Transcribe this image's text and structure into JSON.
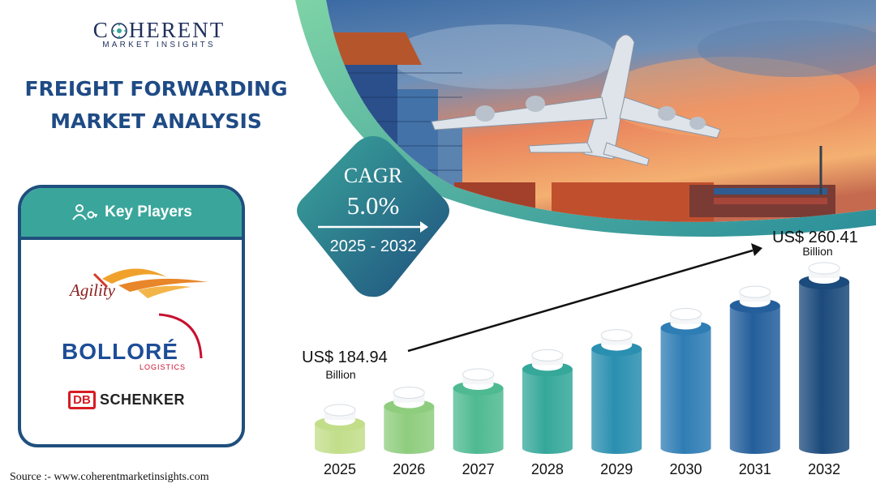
{
  "brand": {
    "logo_word": "COHERENT",
    "logo_sub": "MARKET INSIGHTS"
  },
  "title": {
    "line1": "FREIGHT FORWARDING",
    "line2": "MARKET ANALYSIS"
  },
  "key_players": {
    "heading": "Key Players",
    "companies": [
      "Agility",
      "BOLLORÉ",
      "LOGISTICS",
      "DB",
      "SCHENKER"
    ]
  },
  "cagr": {
    "label": "CAGR",
    "value": "5.0%",
    "period": "2025 - 2032"
  },
  "source": "Source :-  www.coherentmarketinsights.com",
  "colors": {
    "title": "#1f4b85",
    "teal": "#3aa69b",
    "navy": "#1f4f7e"
  },
  "chart_data": {
    "type": "bar",
    "categories": [
      "2025",
      "2026",
      "2027",
      "2028",
      "2029",
      "2030",
      "2031",
      "2032"
    ],
    "values": [
      184.94,
      194.19,
      203.9,
      214.09,
      224.8,
      236.04,
      247.84,
      260.41
    ],
    "annotations": [
      {
        "category": "2025",
        "value_label": "US$ 184.94",
        "unit_label": "Billion"
      },
      {
        "category": "2032",
        "value_label": "US$ 260.41",
        "unit_label": "Billion"
      }
    ],
    "bar_colors": [
      "#c2de8a",
      "#8fcd7e",
      "#4fba92",
      "#35a89a",
      "#2a8fb0",
      "#2f7db5",
      "#245f9c",
      "#1b4a7c"
    ],
    "grid": false
  }
}
